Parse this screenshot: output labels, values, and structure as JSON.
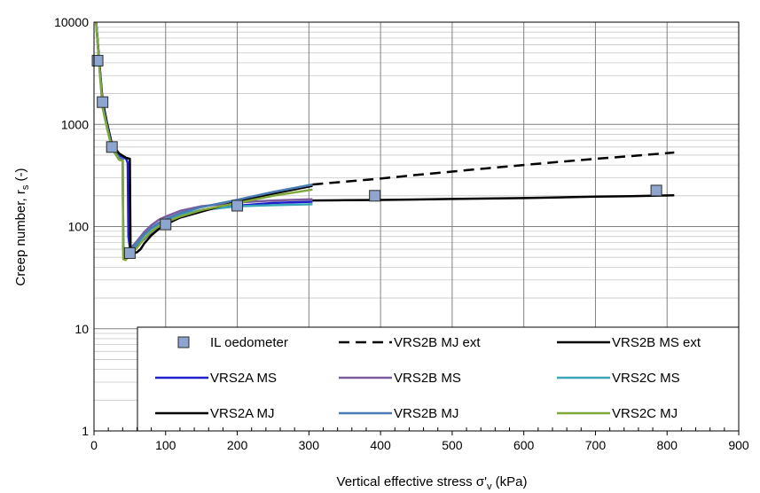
{
  "chart_data": {
    "type": "line",
    "xlabel": "Vertical effective stress σ'",
    "xlabel_sub": "v",
    "xlabel_unit": " (kPa)",
    "ylabel": "Creep number, r",
    "ylabel_sub": "s",
    "ylabel_unit": " (-)",
    "xlim": [
      0,
      900
    ],
    "ylim": [
      1,
      10000
    ],
    "yscale": "log",
    "grid": true,
    "legend_position": "bottom-right",
    "x_ticks": [
      0,
      100,
      200,
      300,
      400,
      500,
      600,
      700,
      800,
      900
    ],
    "x_tick_labels": [
      "0",
      "100",
      "200",
      "300",
      "400",
      "500",
      "600",
      "700",
      "800",
      "900"
    ],
    "y_ticks": [
      1,
      10,
      100,
      1000,
      10000
    ],
    "y_tick_labels": [
      "1",
      "10",
      "100",
      "1000",
      "10000"
    ],
    "series": [
      {
        "name": "IL oedometer",
        "type": "scatter",
        "marker": "square",
        "color": "#8EA6CF",
        "x": [
          5,
          12,
          25,
          50,
          100,
          200,
          392,
          785
        ],
        "y": [
          4200,
          1650,
          600,
          55,
          105,
          160,
          200,
          225
        ]
      },
      {
        "name": "VRS2B MJ ext",
        "color": "#000000",
        "dash": "dashed",
        "x": [
          305,
          350,
          400,
          450,
          500,
          550,
          600,
          650,
          700,
          750,
          810
        ],
        "y": [
          258,
          275,
          295,
          320,
          345,
          372,
          400,
          430,
          460,
          490,
          530
        ]
      },
      {
        "name": "VRS2B MS ext",
        "color": "#000000",
        "x": [
          305,
          350,
          400,
          450,
          500,
          550,
          600,
          650,
          700,
          750,
          810
        ],
        "y": [
          180,
          181,
          182,
          184,
          186,
          188,
          190,
          193,
          196,
          198,
          202
        ]
      },
      {
        "name": "VRS2A MS",
        "color": "#1F1FCC",
        "x": [
          3,
          8,
          12,
          18,
          25,
          35,
          42,
          45,
          47,
          48,
          50,
          60,
          70,
          80,
          90,
          100,
          120,
          150,
          200,
          250,
          305
        ],
        "y": [
          10000,
          3500,
          1600,
          1000,
          620,
          500,
          470,
          460,
          420,
          80,
          62,
          65,
          75,
          88,
          100,
          112,
          128,
          145,
          160,
          170,
          175
        ]
      },
      {
        "name": "VRS2B MS",
        "color": "#7A5B9E",
        "x": [
          3,
          8,
          12,
          18,
          25,
          35,
          40,
          41,
          44,
          50,
          60,
          70,
          80,
          90,
          100,
          120,
          150,
          200,
          250,
          305
        ],
        "y": [
          10000,
          3400,
          1550,
          980,
          600,
          470,
          455,
          60,
          55,
          60,
          72,
          88,
          103,
          116,
          125,
          142,
          158,
          172,
          180,
          185
        ]
      },
      {
        "name": "VRS2C MS",
        "color": "#3AA6B7",
        "x": [
          3,
          8,
          12,
          18,
          25,
          35,
          40,
          41,
          44,
          50,
          60,
          70,
          80,
          90,
          100,
          120,
          150,
          200,
          250,
          305
        ],
        "y": [
          10000,
          3300,
          1500,
          950,
          590,
          460,
          450,
          52,
          50,
          56,
          68,
          82,
          95,
          106,
          115,
          130,
          145,
          158,
          162,
          165
        ]
      },
      {
        "name": "VRS2A MJ",
        "color": "#000000",
        "x": [
          3,
          8,
          12,
          18,
          25,
          35,
          45,
          50,
          51,
          55,
          60,
          65,
          70,
          80,
          90,
          100,
          120,
          150,
          200,
          250,
          305
        ],
        "y": [
          10000,
          3600,
          1700,
          1050,
          640,
          520,
          470,
          460,
          62,
          55,
          56,
          60,
          68,
          82,
          94,
          105,
          122,
          140,
          175,
          210,
          250
        ]
      },
      {
        "name": "VRS2B MJ",
        "color": "#4A7CB3",
        "x": [
          3,
          8,
          12,
          18,
          25,
          35,
          40,
          41,
          44,
          50,
          60,
          70,
          80,
          90,
          100,
          120,
          150,
          200,
          250,
          305
        ],
        "y": [
          10000,
          3400,
          1550,
          980,
          600,
          470,
          455,
          58,
          52,
          58,
          70,
          84,
          97,
          108,
          118,
          135,
          155,
          183,
          218,
          258
        ]
      },
      {
        "name": "VRS2C MJ",
        "color": "#7FA83C",
        "x": [
          3,
          8,
          12,
          18,
          25,
          35,
          40,
          41,
          44,
          50,
          60,
          70,
          80,
          90,
          100,
          120,
          150,
          200,
          250,
          305
        ],
        "y": [
          10000,
          3200,
          1450,
          930,
          580,
          450,
          440,
          48,
          47,
          52,
          62,
          76,
          89,
          100,
          110,
          125,
          145,
          170,
          200,
          230
        ]
      }
    ]
  }
}
